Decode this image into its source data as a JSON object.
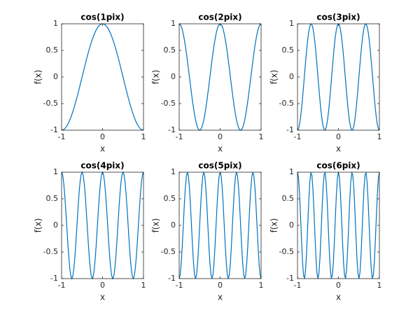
{
  "chart_data": [
    {
      "type": "line",
      "title": "cos(1pix)",
      "x_label": "x",
      "y_label": "f(x)",
      "xlim": [
        -1,
        1
      ],
      "ylim": [
        -1,
        1
      ],
      "xticks": [
        -1,
        0,
        1
      ],
      "yticks": [
        -1,
        -0.5,
        0,
        0.5,
        1
      ],
      "color": "#0072bd",
      "x": [
        -1,
        -0.975,
        -0.95,
        -0.925,
        -0.9,
        -0.875,
        -0.85,
        -0.825,
        -0.8,
        -0.775,
        -0.75,
        -0.725,
        -0.7,
        -0.675,
        -0.65,
        -0.625,
        -0.6,
        -0.575,
        -0.55,
        -0.525,
        -0.5,
        -0.475,
        -0.45,
        -0.425,
        -0.4,
        -0.375,
        -0.35,
        -0.325,
        -0.3,
        -0.275,
        -0.25,
        -0.225,
        -0.2,
        -0.175,
        -0.15,
        -0.125,
        -0.1,
        -0.075,
        -0.05,
        -0.025,
        0,
        0.025,
        0.05,
        0.075,
        0.1,
        0.125,
        0.15,
        0.175,
        0.2,
        0.225,
        0.25,
        0.275,
        0.3,
        0.325,
        0.35,
        0.375,
        0.4,
        0.425,
        0.45,
        0.475,
        0.5,
        0.525,
        0.55,
        0.575,
        0.6,
        0.625,
        0.65,
        0.675,
        0.7,
        0.725,
        0.75,
        0.775,
        0.8,
        0.825,
        0.85,
        0.875,
        0.9,
        0.925,
        0.95,
        0.975,
        1
      ],
      "values": [
        -1,
        -0.997,
        -0.988,
        -0.972,
        -0.951,
        -0.924,
        -0.891,
        -0.853,
        -0.809,
        -0.76,
        -0.707,
        -0.649,
        -0.588,
        -0.522,
        -0.454,
        -0.383,
        -0.309,
        -0.233,
        -0.156,
        -0.078,
        0,
        0.078,
        0.156,
        0.233,
        0.309,
        0.383,
        0.454,
        0.522,
        0.588,
        0.649,
        0.707,
        0.76,
        0.809,
        0.853,
        0.891,
        0.924,
        0.951,
        0.972,
        0.988,
        0.997,
        1,
        0.997,
        0.988,
        0.972,
        0.951,
        0.924,
        0.891,
        0.853,
        0.809,
        0.76,
        0.707,
        0.649,
        0.588,
        0.522,
        0.454,
        0.383,
        0.309,
        0.233,
        0.156,
        0.078,
        0,
        -0.078,
        -0.156,
        -0.233,
        -0.309,
        -0.383,
        -0.454,
        -0.522,
        -0.588,
        -0.649,
        -0.707,
        -0.76,
        -0.809,
        -0.853,
        -0.891,
        -0.924,
        -0.951,
        -0.972,
        -0.988,
        -0.997,
        -1
      ]
    },
    {
      "type": "line",
      "title": "cos(2pix)",
      "x_label": "x",
      "y_label": "f(x)",
      "xlim": [
        -1,
        1
      ],
      "ylim": [
        -1,
        1
      ],
      "xticks": [
        -1,
        0,
        1
      ],
      "yticks": [
        -1,
        -0.5,
        0,
        0.5,
        1
      ],
      "color": "#0072bd",
      "x": [
        -1,
        -0.975,
        -0.95,
        -0.925,
        -0.9,
        -0.875,
        -0.85,
        -0.825,
        -0.8,
        -0.775,
        -0.75,
        -0.725,
        -0.7,
        -0.675,
        -0.65,
        -0.625,
        -0.6,
        -0.575,
        -0.55,
        -0.525,
        -0.5,
        -0.475,
        -0.45,
        -0.425,
        -0.4,
        -0.375,
        -0.35,
        -0.325,
        -0.3,
        -0.275,
        -0.25,
        -0.225,
        -0.2,
        -0.175,
        -0.15,
        -0.125,
        -0.1,
        -0.075,
        -0.05,
        -0.025,
        0,
        0.025,
        0.05,
        0.075,
        0.1,
        0.125,
        0.15,
        0.175,
        0.2,
        0.225,
        0.25,
        0.275,
        0.3,
        0.325,
        0.35,
        0.375,
        0.4,
        0.425,
        0.45,
        0.475,
        0.5,
        0.525,
        0.55,
        0.575,
        0.6,
        0.625,
        0.65,
        0.675,
        0.7,
        0.725,
        0.75,
        0.775,
        0.8,
        0.825,
        0.85,
        0.875,
        0.9,
        0.925,
        0.95,
        0.975,
        1
      ],
      "values": [
        1,
        0.988,
        0.951,
        0.891,
        0.809,
        0.707,
        0.588,
        0.454,
        0.309,
        0.156,
        0,
        -0.156,
        -0.309,
        -0.454,
        -0.588,
        -0.707,
        -0.809,
        -0.891,
        -0.951,
        -0.988,
        -1,
        -0.988,
        -0.951,
        -0.891,
        -0.809,
        -0.707,
        -0.588,
        -0.454,
        -0.309,
        -0.156,
        0,
        0.156,
        0.309,
        0.454,
        0.588,
        0.707,
        0.809,
        0.891,
        0.951,
        0.988,
        1,
        0.988,
        0.951,
        0.891,
        0.809,
        0.707,
        0.588,
        0.454,
        0.309,
        0.156,
        0,
        -0.156,
        -0.309,
        -0.454,
        -0.588,
        -0.707,
        -0.809,
        -0.891,
        -0.951,
        -0.988,
        -1,
        -0.988,
        -0.951,
        -0.891,
        -0.809,
        -0.707,
        -0.588,
        -0.454,
        -0.309,
        -0.156,
        0,
        0.156,
        0.309,
        0.454,
        0.588,
        0.707,
        0.809,
        0.891,
        0.951,
        0.988,
        1
      ]
    },
    {
      "type": "line",
      "title": "cos(3pix)",
      "x_label": "x",
      "y_label": "f(x)",
      "xlim": [
        -1,
        1
      ],
      "ylim": [
        -1,
        1
      ],
      "xticks": [
        -1,
        0,
        1
      ],
      "yticks": [
        -1,
        -0.5,
        0,
        0.5,
        1
      ],
      "color": "#0072bd",
      "x": [
        -1,
        -0.975,
        -0.95,
        -0.925,
        -0.9,
        -0.875,
        -0.85,
        -0.825,
        -0.8,
        -0.775,
        -0.75,
        -0.725,
        -0.7,
        -0.675,
        -0.65,
        -0.625,
        -0.6,
        -0.575,
        -0.55,
        -0.525,
        -0.5,
        -0.475,
        -0.45,
        -0.425,
        -0.4,
        -0.375,
        -0.35,
        -0.325,
        -0.3,
        -0.275,
        -0.25,
        -0.225,
        -0.2,
        -0.175,
        -0.15,
        -0.125,
        -0.1,
        -0.075,
        -0.05,
        -0.025,
        0,
        0.025,
        0.05,
        0.075,
        0.1,
        0.125,
        0.15,
        0.175,
        0.2,
        0.225,
        0.25,
        0.275,
        0.3,
        0.325,
        0.35,
        0.375,
        0.4,
        0.425,
        0.45,
        0.475,
        0.5,
        0.525,
        0.55,
        0.575,
        0.6,
        0.625,
        0.65,
        0.675,
        0.7,
        0.725,
        0.75,
        0.775,
        0.8,
        0.825,
        0.85,
        0.875,
        0.9,
        0.925,
        0.95,
        0.975,
        1
      ],
      "values": [
        -1,
        -0.972,
        -0.891,
        -0.76,
        -0.588,
        -0.383,
        -0.156,
        0.078,
        0.309,
        0.522,
        0.707,
        0.853,
        0.951,
        0.997,
        0.988,
        0.924,
        0.809,
        0.649,
        0.454,
        0.233,
        0,
        -0.233,
        -0.454,
        -0.649,
        -0.809,
        -0.924,
        -0.988,
        -0.997,
        -0.951,
        -0.853,
        -0.707,
        -0.522,
        -0.309,
        -0.078,
        0.156,
        0.383,
        0.588,
        0.76,
        0.891,
        0.972,
        1,
        0.972,
        0.891,
        0.76,
        0.588,
        0.383,
        0.156,
        -0.078,
        -0.309,
        -0.522,
        -0.707,
        -0.853,
        -0.951,
        -0.997,
        -0.988,
        -0.924,
        -0.809,
        -0.649,
        -0.454,
        -0.233,
        0,
        0.233,
        0.454,
        0.649,
        0.809,
        0.924,
        0.988,
        0.997,
        0.951,
        0.853,
        0.707,
        0.522,
        0.309,
        0.078,
        -0.156,
        -0.383,
        -0.588,
        -0.76,
        -0.891,
        -0.972,
        -1
      ]
    },
    {
      "type": "line",
      "title": "cos(4pix)",
      "x_label": "x",
      "y_label": "f(x)",
      "xlim": [
        -1,
        1
      ],
      "ylim": [
        -1,
        1
      ],
      "xticks": [
        -1,
        0,
        1
      ],
      "yticks": [
        -1,
        -0.5,
        0,
        0.5,
        1
      ],
      "color": "#0072bd",
      "x": [
        -1,
        -0.975,
        -0.95,
        -0.925,
        -0.9,
        -0.875,
        -0.85,
        -0.825,
        -0.8,
        -0.775,
        -0.75,
        -0.725,
        -0.7,
        -0.675,
        -0.65,
        -0.625,
        -0.6,
        -0.575,
        -0.55,
        -0.525,
        -0.5,
        -0.475,
        -0.45,
        -0.425,
        -0.4,
        -0.375,
        -0.35,
        -0.325,
        -0.3,
        -0.275,
        -0.25,
        -0.225,
        -0.2,
        -0.175,
        -0.15,
        -0.125,
        -0.1,
        -0.075,
        -0.05,
        -0.025,
        0,
        0.025,
        0.05,
        0.075,
        0.1,
        0.125,
        0.15,
        0.175,
        0.2,
        0.225,
        0.25,
        0.275,
        0.3,
        0.325,
        0.35,
        0.375,
        0.4,
        0.425,
        0.45,
        0.475,
        0.5,
        0.525,
        0.55,
        0.575,
        0.6,
        0.625,
        0.65,
        0.675,
        0.7,
        0.725,
        0.75,
        0.775,
        0.8,
        0.825,
        0.85,
        0.875,
        0.9,
        0.925,
        0.95,
        0.975,
        1
      ],
      "values": [
        1,
        0.951,
        0.809,
        0.588,
        0.309,
        0,
        -0.309,
        -0.588,
        -0.809,
        -0.951,
        -1,
        -0.951,
        -0.809,
        -0.588,
        -0.309,
        0,
        0.309,
        0.588,
        0.809,
        0.951,
        1,
        0.951,
        0.809,
        0.588,
        0.309,
        0,
        -0.309,
        -0.588,
        -0.809,
        -0.951,
        -1,
        -0.951,
        -0.809,
        -0.588,
        -0.309,
        0,
        0.309,
        0.588,
        0.809,
        0.951,
        1,
        0.951,
        0.809,
        0.588,
        0.309,
        0,
        -0.309,
        -0.588,
        -0.809,
        -0.951,
        -1,
        -0.951,
        -0.809,
        -0.588,
        -0.309,
        0,
        0.309,
        0.588,
        0.809,
        0.951,
        1,
        0.951,
        0.809,
        0.588,
        0.309,
        0,
        -0.309,
        -0.588,
        -0.809,
        -0.951,
        -1,
        -0.951,
        -0.809,
        -0.588,
        -0.309,
        0,
        0.309,
        0.588,
        0.809,
        0.951,
        1
      ]
    },
    {
      "type": "line",
      "title": "cos(5pix)",
      "x_label": "x",
      "y_label": "f(x)",
      "xlim": [
        -1,
        1
      ],
      "ylim": [
        -1,
        1
      ],
      "xticks": [
        -1,
        0,
        1
      ],
      "yticks": [
        -1,
        -0.5,
        0,
        0.5,
        1
      ],
      "color": "#0072bd",
      "x": [
        -1,
        -0.975,
        -0.95,
        -0.925,
        -0.9,
        -0.875,
        -0.85,
        -0.825,
        -0.8,
        -0.775,
        -0.75,
        -0.725,
        -0.7,
        -0.675,
        -0.65,
        -0.625,
        -0.6,
        -0.575,
        -0.55,
        -0.525,
        -0.5,
        -0.475,
        -0.45,
        -0.425,
        -0.4,
        -0.375,
        -0.35,
        -0.325,
        -0.3,
        -0.275,
        -0.25,
        -0.225,
        -0.2,
        -0.175,
        -0.15,
        -0.125,
        -0.1,
        -0.075,
        -0.05,
        -0.025,
        0,
        0.025,
        0.05,
        0.075,
        0.1,
        0.125,
        0.15,
        0.175,
        0.2,
        0.225,
        0.25,
        0.275,
        0.3,
        0.325,
        0.35,
        0.375,
        0.4,
        0.425,
        0.45,
        0.475,
        0.5,
        0.525,
        0.55,
        0.575,
        0.6,
        0.625,
        0.65,
        0.675,
        0.7,
        0.725,
        0.75,
        0.775,
        0.8,
        0.825,
        0.85,
        0.875,
        0.9,
        0.925,
        0.95,
        0.975,
        1
      ],
      "values": [
        -1,
        -0.924,
        -0.707,
        -0.383,
        0,
        0.383,
        0.707,
        0.924,
        1,
        0.924,
        0.707,
        0.383,
        0,
        -0.383,
        -0.707,
        -0.924,
        -1,
        -0.924,
        -0.707,
        -0.383,
        0,
        0.383,
        0.707,
        0.924,
        1,
        0.924,
        0.707,
        0.383,
        0,
        -0.383,
        -0.707,
        -0.924,
        -1,
        -0.924,
        -0.707,
        -0.383,
        0,
        0.383,
        0.707,
        0.924,
        1,
        0.924,
        0.707,
        0.383,
        0,
        -0.383,
        -0.707,
        -0.924,
        -1,
        -0.924,
        -0.707,
        -0.383,
        0,
        0.383,
        0.707,
        0.924,
        1,
        0.924,
        0.707,
        0.383,
        0,
        -0.383,
        -0.707,
        -0.924,
        -1,
        -0.924,
        -0.707,
        -0.383,
        0,
        0.383,
        0.707,
        0.924,
        1,
        0.924,
        0.707,
        0.383,
        0,
        -0.383,
        -0.707,
        -0.924,
        -1
      ]
    },
    {
      "type": "line",
      "title": "cos(6pix)",
      "x_label": "x",
      "y_label": "f(x)",
      "xlim": [
        -1,
        1
      ],
      "ylim": [
        -1,
        1
      ],
      "xticks": [
        -1,
        0,
        1
      ],
      "yticks": [
        -1,
        -0.5,
        0,
        0.5,
        1
      ],
      "color": "#0072bd",
      "x": [
        -1,
        -0.975,
        -0.95,
        -0.925,
        -0.9,
        -0.875,
        -0.85,
        -0.825,
        -0.8,
        -0.775,
        -0.75,
        -0.725,
        -0.7,
        -0.675,
        -0.65,
        -0.625,
        -0.6,
        -0.575,
        -0.55,
        -0.525,
        -0.5,
        -0.475,
        -0.45,
        -0.425,
        -0.4,
        -0.375,
        -0.35,
        -0.325,
        -0.3,
        -0.275,
        -0.25,
        -0.225,
        -0.2,
        -0.175,
        -0.15,
        -0.125,
        -0.1,
        -0.075,
        -0.05,
        -0.025,
        0,
        0.025,
        0.05,
        0.075,
        0.1,
        0.125,
        0.15,
        0.175,
        0.2,
        0.225,
        0.25,
        0.275,
        0.3,
        0.325,
        0.35,
        0.375,
        0.4,
        0.425,
        0.45,
        0.475,
        0.5,
        0.525,
        0.55,
        0.575,
        0.6,
        0.625,
        0.65,
        0.675,
        0.7,
        0.725,
        0.75,
        0.775,
        0.8,
        0.825,
        0.85,
        0.875,
        0.9,
        0.925,
        0.95,
        0.975,
        1
      ],
      "values": [
        1,
        0.891,
        0.588,
        0.156,
        -0.309,
        -0.707,
        -0.951,
        -0.988,
        -0.809,
        -0.454,
        0,
        0.454,
        0.809,
        0.988,
        0.951,
        0.707,
        0.309,
        -0.156,
        -0.588,
        -0.891,
        -1,
        -0.891,
        -0.588,
        -0.156,
        0.309,
        0.707,
        0.951,
        0.988,
        0.809,
        0.454,
        0,
        -0.454,
        -0.809,
        -0.988,
        -0.951,
        -0.707,
        -0.309,
        0.156,
        0.588,
        0.891,
        1,
        0.891,
        0.588,
        0.156,
        -0.309,
        -0.707,
        -0.951,
        -0.988,
        -0.809,
        -0.454,
        0,
        0.454,
        0.809,
        0.988,
        0.951,
        0.707,
        0.309,
        -0.156,
        -0.588,
        -0.891,
        -1,
        -0.891,
        -0.588,
        -0.156,
        0.309,
        0.707,
        0.951,
        0.988,
        0.809,
        0.454,
        0,
        -0.454,
        -0.809,
        -0.988,
        -0.951,
        -0.707,
        -0.309,
        0.156,
        0.588,
        0.891,
        1
      ]
    }
  ]
}
